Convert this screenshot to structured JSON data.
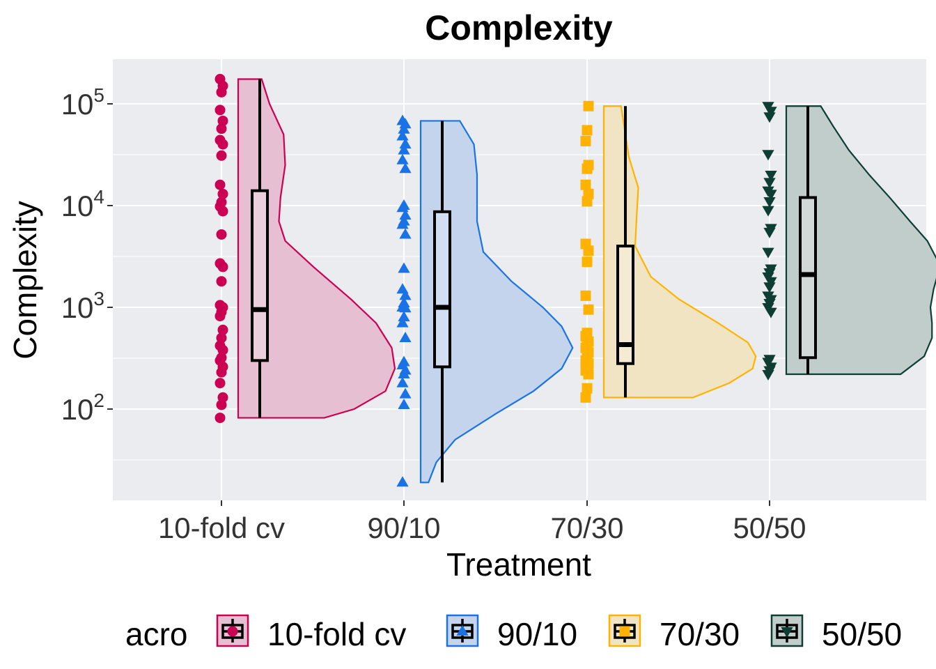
{
  "chart_data": {
    "type": "raincloud",
    "title": "Complexity",
    "xlabel": "Treatment",
    "ylabel": "Complexity",
    "y_scale": "log10",
    "ylim": [
      12,
      280000
    ],
    "y_ticks": [
      100,
      1000,
      10000,
      100000
    ],
    "y_tick_exponents": [
      "2",
      "3",
      "4",
      "5"
    ],
    "y_tick_base": "10",
    "categories": [
      "10-fold cv",
      "90/10",
      "70/30",
      "50/50"
    ],
    "legend": {
      "title": "acro",
      "position": "bottom"
    },
    "panel_background": "#ebecf0",
    "grid": true,
    "series": [
      {
        "name": "10-fold cv",
        "color": "#cc0052",
        "fill": "#e6bfd2",
        "shape": "circle",
        "box": {
          "min": 82,
          "q1": 300,
          "median": 950,
          "q3": 14000,
          "max": 175000
        },
        "density": [
          [
            82,
            0.55
          ],
          [
            100,
            0.74
          ],
          [
            150,
            0.94
          ],
          [
            250,
            1.0
          ],
          [
            400,
            0.98
          ],
          [
            700,
            0.88
          ],
          [
            1200,
            0.72
          ],
          [
            2500,
            0.48
          ],
          [
            4500,
            0.3
          ],
          [
            7000,
            0.26
          ],
          [
            12000,
            0.27
          ],
          [
            25000,
            0.3
          ],
          [
            50000,
            0.29
          ],
          [
            100000,
            0.2
          ],
          [
            175000,
            0.15
          ]
        ],
        "points": [
          82,
          110,
          130,
          180,
          230,
          260,
          300,
          320,
          380,
          420,
          500,
          600,
          820,
          900,
          1000,
          1050,
          1800,
          2500,
          2700,
          5200,
          8800,
          9800,
          10800,
          13000,
          16000,
          31000,
          40000,
          44000,
          57000,
          68000,
          87000,
          130000,
          150000,
          175000
        ]
      },
      {
        "name": "90/10",
        "color": "#1a73e6",
        "fill": "#c3d4ec",
        "shape": "triangle-up",
        "box": {
          "min": 19,
          "q1": 260,
          "median": 1000,
          "q3": 8700,
          "max": 68000
        },
        "density": [
          [
            19,
            0.05
          ],
          [
            30,
            0.1
          ],
          [
            50,
            0.22
          ],
          [
            90,
            0.48
          ],
          [
            150,
            0.72
          ],
          [
            250,
            0.9
          ],
          [
            400,
            0.97
          ],
          [
            650,
            0.9
          ],
          [
            1000,
            0.78
          ],
          [
            1800,
            0.58
          ],
          [
            3500,
            0.4
          ],
          [
            7000,
            0.36
          ],
          [
            12000,
            0.36
          ],
          [
            20000,
            0.36
          ],
          [
            40000,
            0.34
          ],
          [
            68000,
            0.25
          ]
        ],
        "points": [
          19,
          110,
          140,
          180,
          220,
          240,
          270,
          290,
          500,
          700,
          800,
          980,
          1000,
          1100,
          1300,
          1500,
          2400,
          5200,
          6500,
          7000,
          8000,
          9500,
          10000,
          23000,
          28000,
          35000,
          40000,
          48000,
          56000,
          63000,
          68000
        ]
      },
      {
        "name": "70/30",
        "color": "#ffb300",
        "fill": "#f0e4c3",
        "shape": "square",
        "box": {
          "min": 130,
          "q1": 280,
          "median": 430,
          "q3": 4000,
          "max": 95000
        },
        "density": [
          [
            130,
            0.57
          ],
          [
            180,
            0.8
          ],
          [
            250,
            0.95
          ],
          [
            330,
            0.97
          ],
          [
            450,
            0.92
          ],
          [
            700,
            0.73
          ],
          [
            1200,
            0.48
          ],
          [
            2000,
            0.3
          ],
          [
            4000,
            0.2
          ],
          [
            8000,
            0.21
          ],
          [
            15000,
            0.22
          ],
          [
            30000,
            0.16
          ],
          [
            60000,
            0.13
          ],
          [
            95000,
            0.11
          ]
        ],
        "points": [
          130,
          160,
          220,
          240,
          260,
          280,
          300,
          330,
          360,
          400,
          430,
          460,
          520,
          560,
          950,
          1300,
          2800,
          3600,
          4200,
          11000,
          13000,
          16000,
          23000,
          25000,
          43000,
          55000,
          95000
        ]
      },
      {
        "name": "50/50",
        "color": "#0d3d33",
        "fill": "#c1cdcb",
        "shape": "triangle-down",
        "box": {
          "min": 220,
          "q1": 320,
          "median": 2100,
          "q3": 12000,
          "max": 95000
        },
        "density": [
          [
            220,
            0.73
          ],
          [
            330,
            0.88
          ],
          [
            500,
            0.93
          ],
          [
            700,
            0.93
          ],
          [
            1000,
            0.92
          ],
          [
            1500,
            0.94
          ],
          [
            2200,
            0.97
          ],
          [
            3000,
            0.96
          ],
          [
            4500,
            0.9
          ],
          [
            7000,
            0.79
          ],
          [
            12000,
            0.66
          ],
          [
            20000,
            0.53
          ],
          [
            35000,
            0.4
          ],
          [
            60000,
            0.3
          ],
          [
            95000,
            0.22
          ]
        ],
        "points": [
          220,
          240,
          260,
          290,
          310,
          900,
          1000,
          1100,
          1200,
          1300,
          1600,
          1800,
          2000,
          2200,
          2400,
          3500,
          5500,
          6000,
          9000,
          11000,
          13000,
          14000,
          17000,
          20000,
          32000,
          75000,
          85000,
          95000
        ]
      }
    ]
  }
}
